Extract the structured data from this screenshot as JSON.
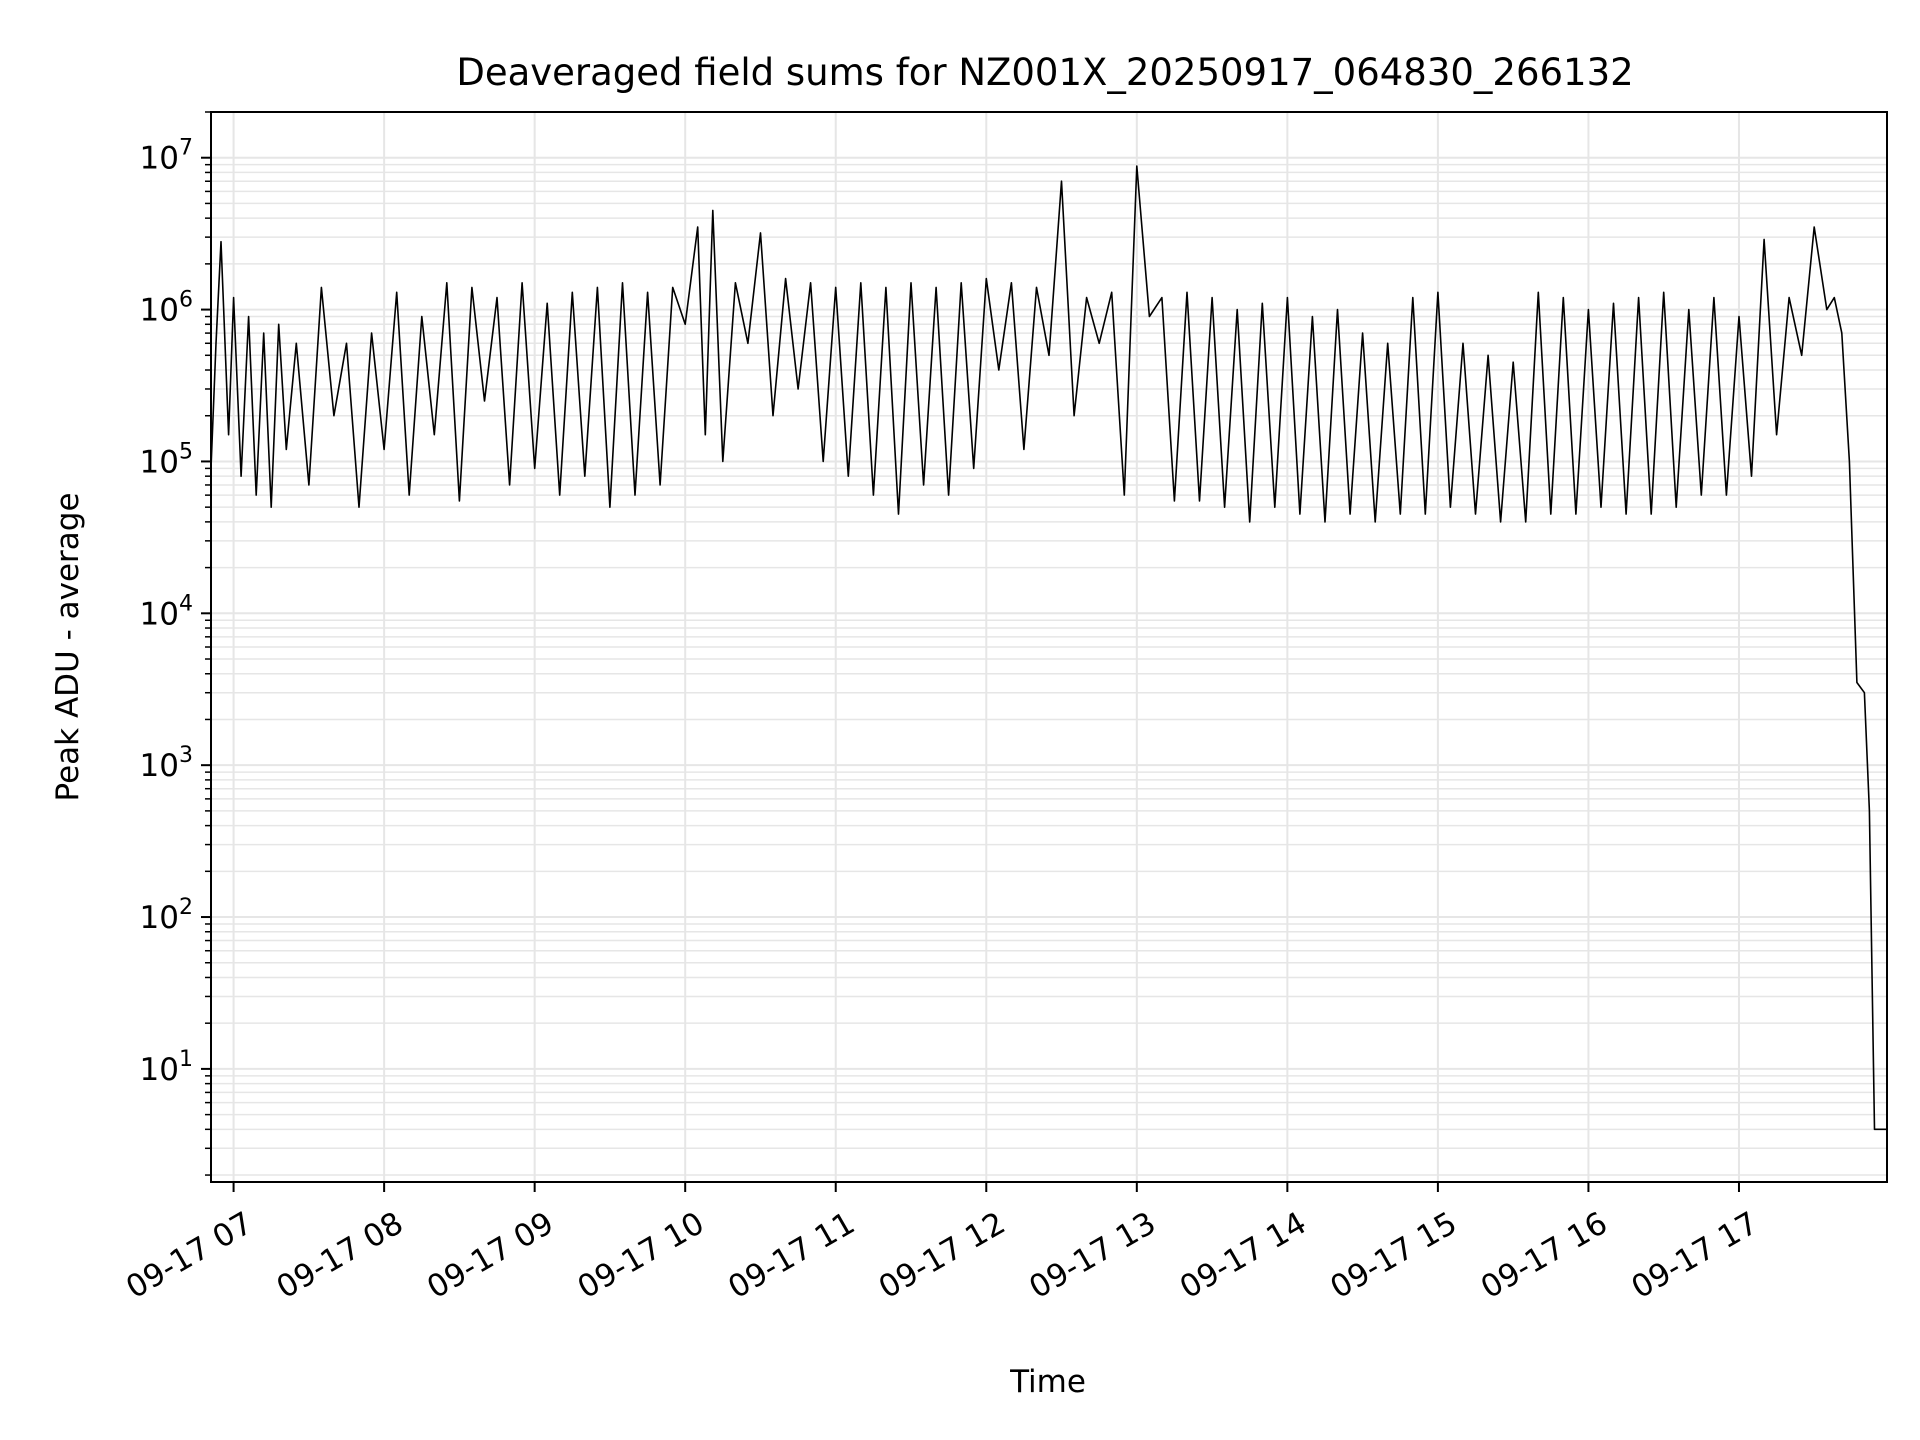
{
  "chart_data": {
    "type": "line",
    "title": "Deaveraged field sums for NZ001X_20250917_064830_266132",
    "xlabel": "Time",
    "ylabel": "Peak ADU - average",
    "yscale": "log",
    "ylim": [
      1.8,
      20000000
    ],
    "xlim": [
      "2025-09-17 06:51",
      "2025-09-17 17:59"
    ],
    "grid": true,
    "line_color": "#000000",
    "grid_color": "#e6e6e6",
    "x_ticks": [
      {
        "value": "2025-09-17 07:00",
        "label": "09-17 07"
      },
      {
        "value": "2025-09-17 08:00",
        "label": "09-17 08"
      },
      {
        "value": "2025-09-17 09:00",
        "label": "09-17 09"
      },
      {
        "value": "2025-09-17 10:00",
        "label": "09-17 10"
      },
      {
        "value": "2025-09-17 11:00",
        "label": "09-17 11"
      },
      {
        "value": "2025-09-17 12:00",
        "label": "09-17 12"
      },
      {
        "value": "2025-09-17 13:00",
        "label": "09-17 13"
      },
      {
        "value": "2025-09-17 14:00",
        "label": "09-17 14"
      },
      {
        "value": "2025-09-17 15:00",
        "label": "09-17 15"
      },
      {
        "value": "2025-09-17 16:00",
        "label": "09-17 16"
      },
      {
        "value": "2025-09-17 17:00",
        "label": "09-17 17"
      }
    ],
    "y_ticks": [
      {
        "value": 10,
        "base": "10",
        "exp": "1"
      },
      {
        "value": 100,
        "base": "10",
        "exp": "2"
      },
      {
        "value": 1000,
        "base": "10",
        "exp": "3"
      },
      {
        "value": 10000,
        "base": "10",
        "exp": "4"
      },
      {
        "value": 100000,
        "base": "10",
        "exp": "5"
      },
      {
        "value": 1000000,
        "base": "10",
        "exp": "6"
      },
      {
        "value": 10000000,
        "base": "10",
        "exp": "7"
      }
    ],
    "series": [
      {
        "x": [
          "2025-09-17 06:51",
          "2025-09-17 06:53",
          "2025-09-17 06:55",
          "2025-09-17 06:58",
          "2025-09-17 07:00",
          "2025-09-17 07:03",
          "2025-09-17 07:06",
          "2025-09-17 07:09",
          "2025-09-17 07:12",
          "2025-09-17 07:15",
          "2025-09-17 07:18",
          "2025-09-17 07:21",
          "2025-09-17 07:25",
          "2025-09-17 07:30",
          "2025-09-17 07:35",
          "2025-09-17 07:40",
          "2025-09-17 07:45",
          "2025-09-17 07:50",
          "2025-09-17 07:55",
          "2025-09-17 08:00",
          "2025-09-17 08:05",
          "2025-09-17 08:10",
          "2025-09-17 08:15",
          "2025-09-17 08:20",
          "2025-09-17 08:25",
          "2025-09-17 08:30",
          "2025-09-17 08:35",
          "2025-09-17 08:40",
          "2025-09-17 08:45",
          "2025-09-17 08:50",
          "2025-09-17 08:55",
          "2025-09-17 09:00",
          "2025-09-17 09:05",
          "2025-09-17 09:10",
          "2025-09-17 09:15",
          "2025-09-17 09:20",
          "2025-09-17 09:25",
          "2025-09-17 09:30",
          "2025-09-17 09:35",
          "2025-09-17 09:40",
          "2025-09-17 09:45",
          "2025-09-17 09:50",
          "2025-09-17 09:55",
          "2025-09-17 10:00",
          "2025-09-17 10:05",
          "2025-09-17 10:08",
          "2025-09-17 10:11",
          "2025-09-17 10:15",
          "2025-09-17 10:20",
          "2025-09-17 10:25",
          "2025-09-17 10:30",
          "2025-09-17 10:35",
          "2025-09-17 10:40",
          "2025-09-17 10:45",
          "2025-09-17 10:50",
          "2025-09-17 10:55",
          "2025-09-17 11:00",
          "2025-09-17 11:05",
          "2025-09-17 11:10",
          "2025-09-17 11:15",
          "2025-09-17 11:20",
          "2025-09-17 11:25",
          "2025-09-17 11:30",
          "2025-09-17 11:35",
          "2025-09-17 11:40",
          "2025-09-17 11:45",
          "2025-09-17 11:50",
          "2025-09-17 11:55",
          "2025-09-17 12:00",
          "2025-09-17 12:05",
          "2025-09-17 12:10",
          "2025-09-17 12:15",
          "2025-09-17 12:20",
          "2025-09-17 12:25",
          "2025-09-17 12:30",
          "2025-09-17 12:35",
          "2025-09-17 12:40",
          "2025-09-17 12:45",
          "2025-09-17 12:50",
          "2025-09-17 12:55",
          "2025-09-17 13:00",
          "2025-09-17 13:05",
          "2025-09-17 13:10",
          "2025-09-17 13:15",
          "2025-09-17 13:20",
          "2025-09-17 13:25",
          "2025-09-17 13:30",
          "2025-09-17 13:35",
          "2025-09-17 13:40",
          "2025-09-17 13:45",
          "2025-09-17 13:50",
          "2025-09-17 13:55",
          "2025-09-17 14:00",
          "2025-09-17 14:05",
          "2025-09-17 14:10",
          "2025-09-17 14:15",
          "2025-09-17 14:20",
          "2025-09-17 14:25",
          "2025-09-17 14:30",
          "2025-09-17 14:35",
          "2025-09-17 14:40",
          "2025-09-17 14:45",
          "2025-09-17 14:50",
          "2025-09-17 14:55",
          "2025-09-17 15:00",
          "2025-09-17 15:05",
          "2025-09-17 15:10",
          "2025-09-17 15:15",
          "2025-09-17 15:20",
          "2025-09-17 15:25",
          "2025-09-17 15:30",
          "2025-09-17 15:35",
          "2025-09-17 15:40",
          "2025-09-17 15:45",
          "2025-09-17 15:50",
          "2025-09-17 15:55",
          "2025-09-17 16:00",
          "2025-09-17 16:05",
          "2025-09-17 16:10",
          "2025-09-17 16:15",
          "2025-09-17 16:20",
          "2025-09-17 16:25",
          "2025-09-17 16:30",
          "2025-09-17 16:35",
          "2025-09-17 16:40",
          "2025-09-17 16:45",
          "2025-09-17 16:50",
          "2025-09-17 16:55",
          "2025-09-17 17:00",
          "2025-09-17 17:05",
          "2025-09-17 17:10",
          "2025-09-17 17:15",
          "2025-09-17 17:20",
          "2025-09-17 17:25",
          "2025-09-17 17:30",
          "2025-09-17 17:35",
          "2025-09-17 17:38",
          "2025-09-17 17:41",
          "2025-09-17 17:44",
          "2025-09-17 17:47",
          "2025-09-17 17:50",
          "2025-09-17 17:52",
          "2025-09-17 17:54",
          "2025-09-17 17:56",
          "2025-09-17 17:59"
        ],
        "y": [
          90000,
          600000,
          2800000,
          150000,
          1200000,
          80000,
          900000,
          60000,
          700000,
          50000,
          800000,
          120000,
          600000,
          70000,
          1400000,
          200000,
          600000,
          50000,
          700000,
          120000,
          1300000,
          60000,
          900000,
          150000,
          1500000,
          55000,
          1400000,
          250000,
          1200000,
          70000,
          1500000,
          90000,
          1100000,
          60000,
          1300000,
          80000,
          1400000,
          50000,
          1500000,
          60000,
          1300000,
          70000,
          1400000,
          800000,
          3500000,
          150000,
          4500000,
          100000,
          1500000,
          600000,
          3200000,
          200000,
          1600000,
          300000,
          1500000,
          100000,
          1400000,
          80000,
          1500000,
          60000,
          1400000,
          45000,
          1500000,
          70000,
          1400000,
          60000,
          1500000,
          90000,
          1600000,
          400000,
          1500000,
          120000,
          1400000,
          500000,
          7000000,
          200000,
          1200000,
          600000,
          1300000,
          60000,
          8800000,
          900000,
          1200000,
          55000,
          1300000,
          55000,
          1200000,
          50000,
          1000000,
          40000,
          1100000,
          50000,
          1200000,
          45000,
          900000,
          40000,
          1000000,
          45000,
          700000,
          40000,
          600000,
          45000,
          1200000,
          45000,
          1300000,
          50000,
          600000,
          45000,
          500000,
          40000,
          450000,
          40000,
          1300000,
          45000,
          1200000,
          45000,
          1000000,
          50000,
          1100000,
          45000,
          1200000,
          45000,
          1300000,
          50000,
          1000000,
          60000,
          1200000,
          60000,
          900000,
          80000,
          2900000,
          150000,
          1200000,
          500000,
          3500000,
          1000000,
          1200000,
          700000,
          100000,
          3500,
          3000,
          500,
          4,
          4,
          4
        ]
      }
    ]
  }
}
